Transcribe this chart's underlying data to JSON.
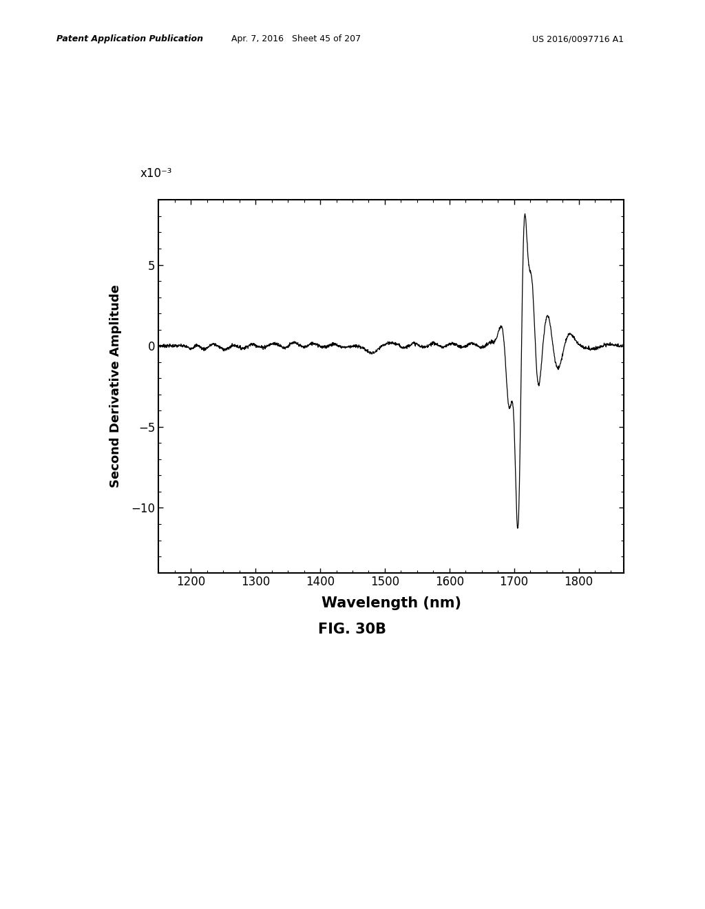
{
  "title_header_left": "Patent Application Publication",
  "title_header_mid": "Apr. 7, 2016   Sheet 45 of 207",
  "title_header_right": "US 2016/0097716 A1",
  "fig_label": "FIG. 30B",
  "xlabel": "Wavelength (nm)",
  "ylabel": "Second Derivative Amplitude",
  "xmin": 1150,
  "xmax": 1870,
  "ymin": -14,
  "ymax": 9,
  "xticks": [
    1200,
    1300,
    1400,
    1500,
    1600,
    1700,
    1800
  ],
  "yticks": [
    -10,
    -5,
    0,
    5
  ],
  "scale_label": "x10⁻³",
  "background_color": "#ffffff",
  "line_color": "#000000"
}
